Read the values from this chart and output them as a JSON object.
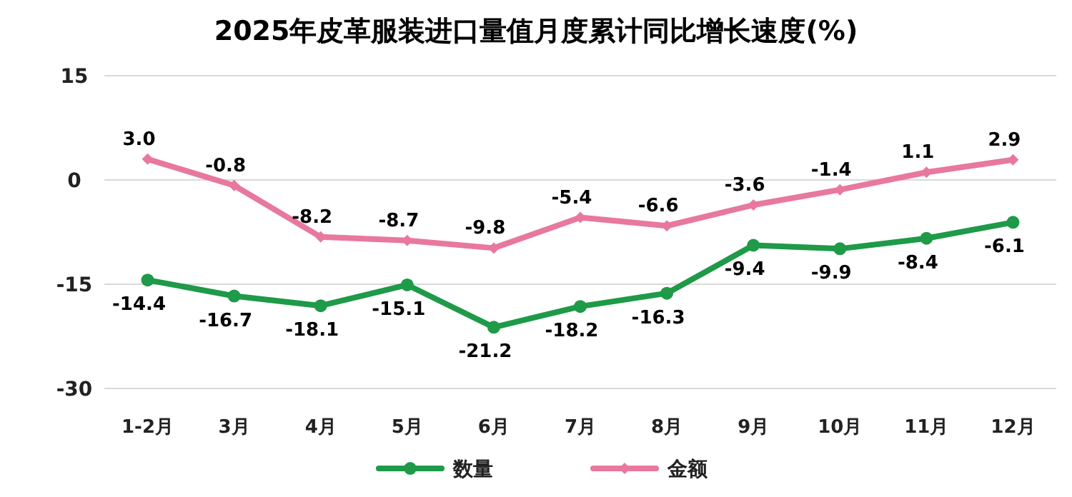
{
  "chart_data": {
    "type": "line",
    "title": "2025年皮革服装进口量值月度累计同比增长速度(%)",
    "categories": [
      "1-2月",
      "3月",
      "4月",
      "5月",
      "6月",
      "7月",
      "8月",
      "9月",
      "10月",
      "11月",
      "12月"
    ],
    "series": [
      {
        "name": "数量",
        "color": "#1e9a48",
        "marker": "circle",
        "values": [
          -14.4,
          -16.7,
          -18.1,
          -15.1,
          -21.2,
          -18.2,
          -16.3,
          -9.4,
          -9.9,
          -8.4,
          -6.1
        ],
        "value_labels": [
          "-14.4",
          "-16.7",
          "-18.1",
          "-15.1",
          "-21.2",
          "-18.2",
          "-16.3",
          "-9.4",
          "-9.9",
          "-8.4",
          "-6.1"
        ]
      },
      {
        "name": "金额",
        "color": "#e8789c",
        "marker": "diamond",
        "values": [
          3.0,
          -0.8,
          -8.2,
          -8.7,
          -9.8,
          -5.4,
          -6.6,
          -3.6,
          -1.4,
          1.1,
          2.9
        ],
        "value_labels": [
          "3.0",
          "-0.8",
          "-8.2",
          "-8.7",
          "-9.8",
          "-5.4",
          "-6.6",
          "-3.6",
          "-1.4",
          "1.1",
          "2.9"
        ]
      }
    ],
    "ylim": [
      -30,
      15
    ],
    "yticks": [
      -30,
      -15,
      0,
      15
    ],
    "grid": "y",
    "legend": "bottom",
    "line_style": "solid"
  }
}
